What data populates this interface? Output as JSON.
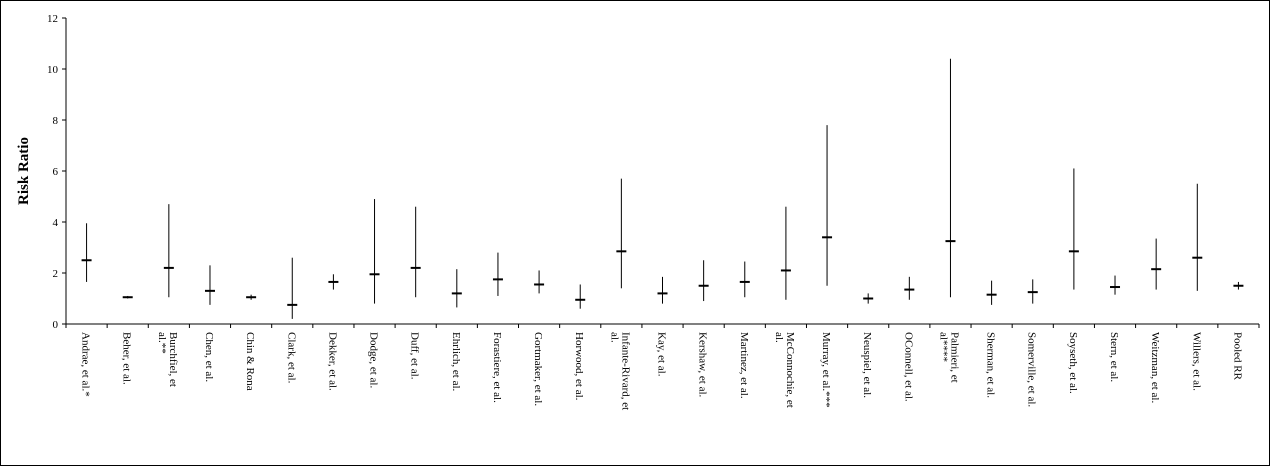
{
  "chart_data": {
    "type": "forest",
    "title": "",
    "xlabel": "",
    "ylabel": "Risk Ratio",
    "ylim": [
      0,
      12
    ],
    "yticks": [
      0,
      2,
      4,
      6,
      8,
      10,
      12
    ],
    "grid": false,
    "legend": "none",
    "categories": [
      "Andrae, et al.*",
      "Beher, et al.",
      "Burchfiel, et al.**",
      "Chen, et al.",
      "Chin & Rona",
      "Clark, et al.",
      "Dekker, et al.",
      "Dodge, et al.",
      "Duff, et al.",
      "Ehrlich, et al.",
      "Forastiere, et al.",
      "Gortmaker, et al.",
      "Horwood, et al.",
      "Infante-Rivard, et al.",
      "Kay, et al.",
      "Kershaw, et al.",
      "Martinez, et al.",
      "McConnochie, et al.",
      "Murray, et al.***",
      "Neuspiel, et al.",
      "OConnell, et al.",
      "Palmieri, et al****",
      "Sherman, et al.",
      "Somerville, et al.",
      "Soyseth, et al.",
      "Stern, et al.",
      "Weitzman, et al.",
      "Willers, et al.",
      "Pooled RR"
    ],
    "estimates": [
      2.5,
      1.05,
      2.2,
      1.3,
      1.05,
      0.75,
      1.65,
      1.95,
      2.2,
      1.2,
      1.75,
      1.55,
      0.95,
      2.85,
      1.2,
      1.5,
      1.65,
      2.1,
      3.4,
      1.0,
      1.35,
      3.25,
      1.15,
      1.25,
      2.85,
      1.45,
      2.15,
      2.6,
      1.5
    ],
    "lower": [
      1.65,
      1.0,
      1.05,
      0.75,
      0.95,
      0.2,
      1.35,
      0.8,
      1.05,
      0.65,
      1.1,
      1.2,
      0.6,
      1.4,
      0.8,
      0.9,
      1.05,
      0.95,
      1.5,
      0.8,
      0.95,
      1.05,
      0.75,
      0.8,
      1.35,
      1.15,
      1.35,
      1.3,
      1.35
    ],
    "upper": [
      3.95,
      1.1,
      4.7,
      2.3,
      1.15,
      2.6,
      1.95,
      4.9,
      4.6,
      2.15,
      2.8,
      2.1,
      1.55,
      5.7,
      1.85,
      2.5,
      2.45,
      4.6,
      7.8,
      1.2,
      1.85,
      10.4,
      1.7,
      1.75,
      6.1,
      1.9,
      3.35,
      5.5,
      1.65
    ]
  }
}
